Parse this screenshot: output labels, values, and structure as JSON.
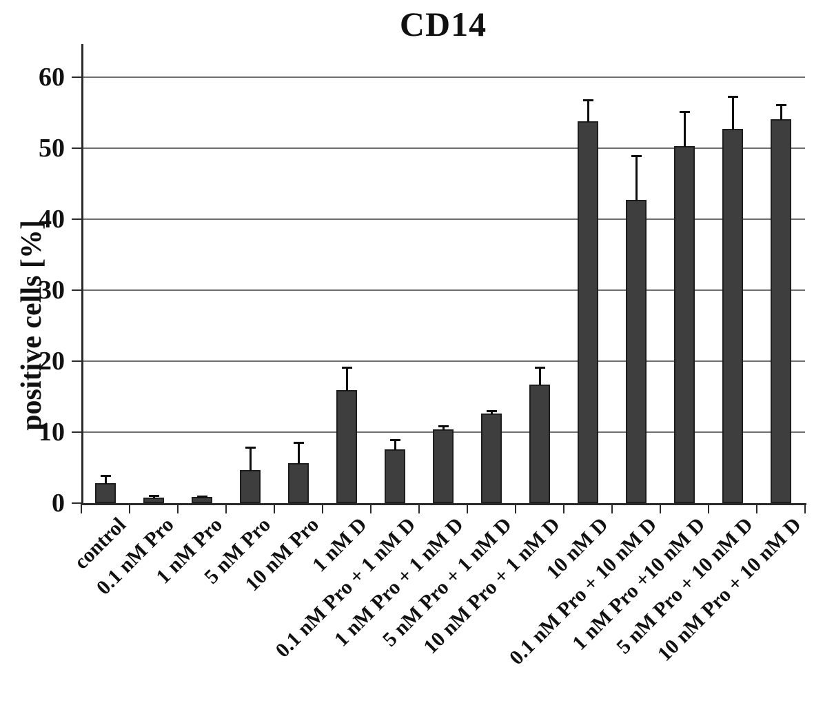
{
  "chart_data": {
    "type": "bar",
    "title": "CD14",
    "xlabel": "",
    "ylabel": "positive cells [%]",
    "ylim": [
      0,
      65
    ],
    "yticks": [
      0,
      10,
      20,
      30,
      40,
      50,
      60
    ],
    "grid": true,
    "legend": "none",
    "bar_color": "#3e3e3e",
    "error_bars": "upper",
    "categories": [
      "control",
      "0.1 nM Pro",
      "1 nM Pro",
      "5 nM Pro",
      "10 nM Pro",
      "1 nM D",
      "0.1 nM Pro + 1 nM D",
      "1 nM Pro + 1 nM D",
      "5 nM Pro + 1 nM D",
      "10 nM Pro + 1 nM D",
      "10 nM D",
      "0.1 nM Pro + 10 nM D",
      "1 nM Pro +10 nM D",
      "5 nM Pro + 10 nM D",
      "10 nM Pro + 10 nM D"
    ],
    "values": [
      2.8,
      0.8,
      0.9,
      4.7,
      5.6,
      15.9,
      7.6,
      10.4,
      12.6,
      16.7,
      53.8,
      42.7,
      50.3,
      52.7,
      54.1
    ],
    "errors_upper": [
      1.2,
      0.4,
      0.2,
      3.3,
      3.0,
      3.3,
      1.4,
      0.6,
      0.5,
      2.5,
      3.1,
      6.3,
      4.9,
      4.7,
      2.1
    ]
  }
}
